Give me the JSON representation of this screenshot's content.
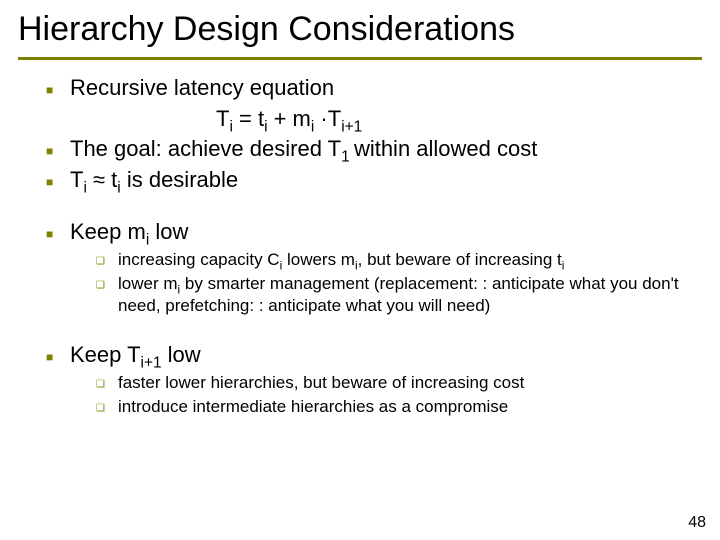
{
  "title": "Hierarchy Design Considerations",
  "bullets": {
    "b1": "Recursive latency equation",
    "eq_pre": "T",
    "eq_i": "i",
    "eq_mid1": " = t",
    "eq_mid2": "  + m",
    "eq_mid3": " ·T",
    "eq_ip1": "i+1",
    "b2_pre": "The goal: achieve desired T",
    "b2_sub": "1 ",
    "b2_post": "within allowed cost",
    "b3_pre": "T",
    "b3_mid": " ≈ t",
    "b3_post": " is desirable",
    "b4_pre": "Keep m",
    "b4_post": " low",
    "b4s1_a": "increasing capacity C",
    "b4s1_b": " lowers m",
    "b4s1_c": ", but beware of increasing t",
    "b4s2_a": "lower m",
    "b4s2_b": " by smarter management (replacement: : anticipate what you don't need, prefetching: : anticipate what you will need)",
    "b5_pre": "Keep T",
    "b5_post": " low",
    "b5s1": "faster lower hierarchies, but beware of increasing cost",
    "b5s2": "introduce intermediate hierarchies as a compromise"
  },
  "pagenum": "48",
  "style": {
    "accent_color": "#808000",
    "title_fontsize": 34,
    "body_fontsize": 22,
    "sub_fontsize": 17,
    "background": "#ffffff"
  }
}
